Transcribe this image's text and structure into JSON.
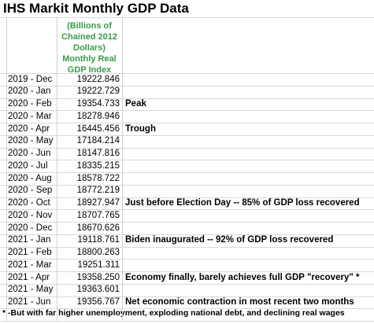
{
  "title": "IHS Markit Monthly GDP Data",
  "header": {
    "lines": [
      "(Billions of",
      "Chained 2012",
      "Dollars)",
      "Monthly Real",
      "GDP Index"
    ]
  },
  "table": {
    "rows": [
      [
        "2019 - Dec",
        "19222.846",
        ""
      ],
      [
        "2020 - Jan",
        "19222.729",
        ""
      ],
      [
        "2020 - Feb",
        "19354.733",
        "Peak"
      ],
      [
        "2020 - Mar",
        "18278.946",
        ""
      ],
      [
        "2020 - Apr",
        "16445.456",
        "Trough"
      ],
      [
        "2020 - May",
        "17184.214",
        ""
      ],
      [
        "2020 - Jun",
        "18147.816",
        ""
      ],
      [
        "2020 - Jul",
        "18335.215",
        ""
      ],
      [
        "2020 - Aug",
        "18578.722",
        ""
      ],
      [
        "2020 - Sep",
        "18772.219",
        ""
      ],
      [
        "2020 - Oct",
        "18927.947",
        "Just before Election Day -- 85% of GDP loss recovered"
      ],
      [
        "2020 - Nov",
        "18707.765",
        ""
      ],
      [
        "2020 - Dec",
        "18670.626",
        ""
      ],
      [
        "2021 - Jan",
        "19118.761",
        "Biden inaugurated -- 92% of GDP loss recovered"
      ],
      [
        "2021 - Feb",
        "18800.263",
        ""
      ],
      [
        "2021 - Mar",
        "19251.311",
        ""
      ],
      [
        "2021 - Apr",
        "19358.250",
        "Economy finally, barely achieves full GDP \"recovery\" *"
      ],
      [
        "2021 - May",
        "19363.601",
        ""
      ],
      [
        "2021 - Jun",
        "19356.767",
        "Net economic contraction in most recent two months"
      ]
    ]
  },
  "footnote": "* -But with far higher unemployment, exploding national debt, and declining real wages"
}
